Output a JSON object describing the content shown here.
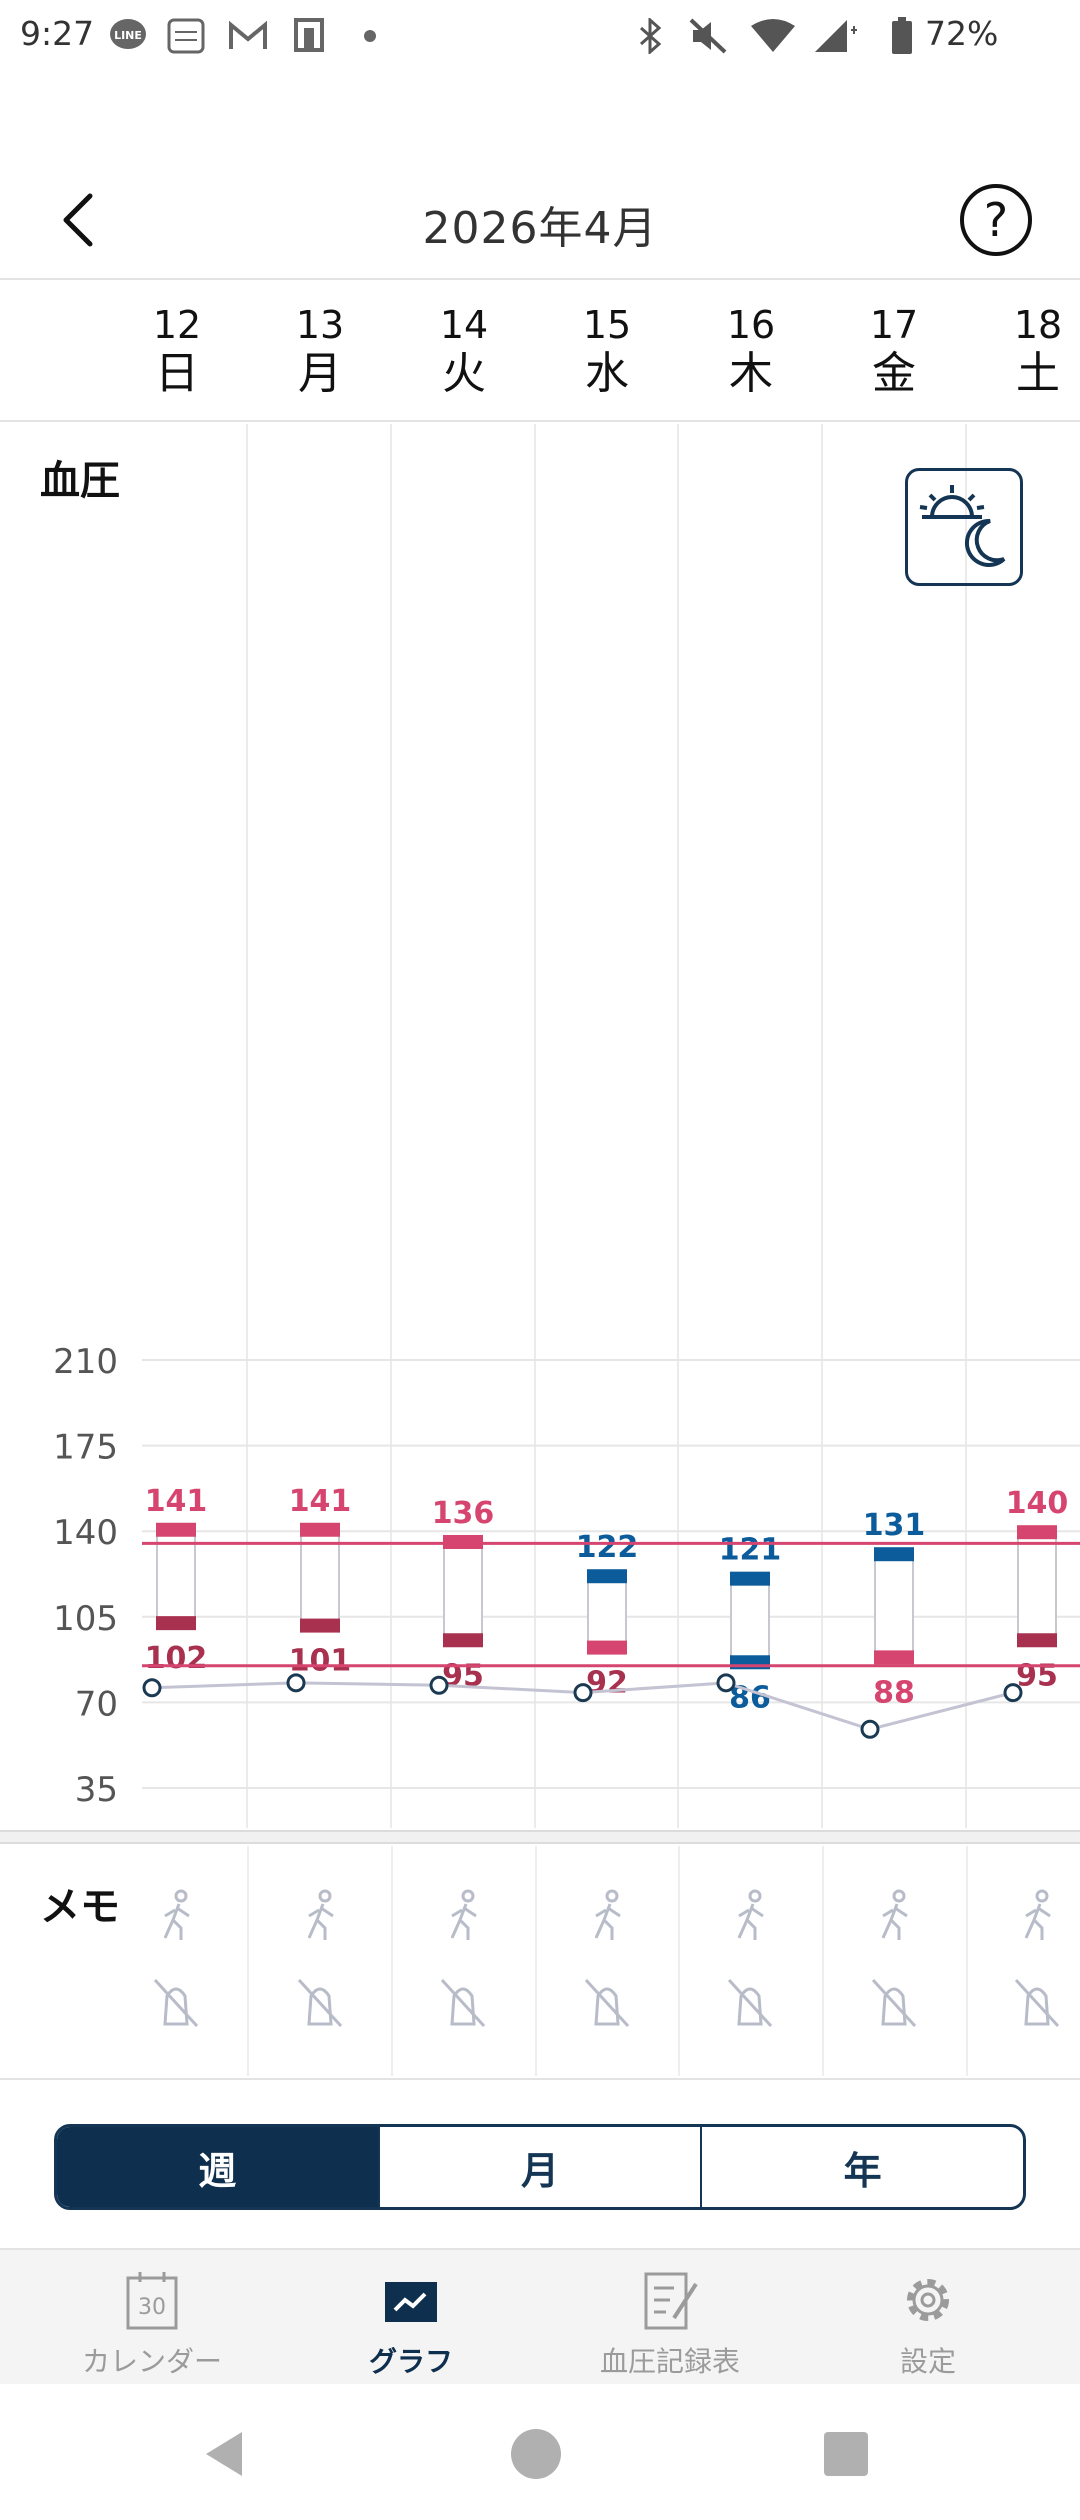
{
  "status_bar": {
    "time": "9:27",
    "battery_pct": "72%",
    "icons": [
      "line-icon",
      "omron-connect-icon",
      "gmail-icon",
      "notification-icon",
      "dot-icon",
      "bluetooth-icon",
      "mute-icon",
      "wifi-icon",
      "signal-icon",
      "battery-icon"
    ]
  },
  "header": {
    "title": "2026年4月",
    "help_label": "?"
  },
  "days": [
    {
      "num": "12",
      "weekday": "日"
    },
    {
      "num": "13",
      "weekday": "月"
    },
    {
      "num": "14",
      "weekday": "火"
    },
    {
      "num": "15",
      "weekday": "水"
    },
    {
      "num": "16",
      "weekday": "木"
    },
    {
      "num": "17",
      "weekday": "金"
    },
    {
      "num": "18",
      "weekday": "土"
    }
  ],
  "chart_label": "血圧",
  "chart_data": {
    "type": "floating-bar-with-line",
    "ylim": [
      35,
      210
    ],
    "y_ticks": [
      "210",
      "175",
      "140",
      "105",
      "70",
      "35"
    ],
    "y_tick_values": [
      210,
      175,
      140,
      105,
      70,
      35
    ],
    "reference_lines": [
      135,
      85
    ],
    "categories": [
      "12",
      "13",
      "14",
      "15",
      "16",
      "17",
      "18"
    ],
    "systolic": [
      141,
      141,
      136,
      122,
      121,
      131,
      140
    ],
    "diastolic": [
      102,
      101,
      95,
      92,
      86,
      88,
      95
    ],
    "systolic_labels": [
      "141",
      "141",
      "136",
      "122",
      "121",
      "131",
      "140"
    ],
    "diastolic_labels": [
      "102",
      "101",
      "95",
      "92",
      "86",
      "88",
      "95"
    ],
    "pulse": [
      76,
      78,
      77,
      74,
      78,
      59,
      74
    ],
    "colors": {
      "high": "#d6456f",
      "high_dark": "#a8314f",
      "normal": "#0c5c9c",
      "reference_line": "#d6456f",
      "pulse_line": "#c3c3d3",
      "pulse_point": "#1b3a52",
      "grid": "#e6e6e6"
    },
    "systolic_color_keys": [
      "high",
      "high",
      "high",
      "normal",
      "normal",
      "normal",
      "high"
    ],
    "diastolic_color_keys": [
      "high_dark",
      "high_dark",
      "high_dark",
      "high",
      "normal",
      "high",
      "high_dark"
    ],
    "systolic_label_color_keys": [
      "high",
      "high",
      "high",
      "normal",
      "normal",
      "normal",
      "high"
    ],
    "diastolic_label_color_keys": [
      "high_dark",
      "high_dark",
      "high_dark",
      "high_dark",
      "normal",
      "high",
      "high_dark"
    ]
  },
  "memo": {
    "label": "メモ",
    "icons": [
      "walking-icon",
      "no-salt-icon",
      "meal-icon"
    ]
  },
  "segment": {
    "items": [
      "週",
      "月",
      "年"
    ],
    "active": "週"
  },
  "nav": {
    "items": [
      {
        "label": "カレンダー",
        "icon": "calendar-icon",
        "calendar_day": "30"
      },
      {
        "label": "グラフ",
        "icon": "graph-icon"
      },
      {
        "label": "血圧記録表",
        "icon": "record-sheet-icon"
      },
      {
        "label": "設定",
        "icon": "settings-icon"
      }
    ],
    "active": "グラフ"
  }
}
